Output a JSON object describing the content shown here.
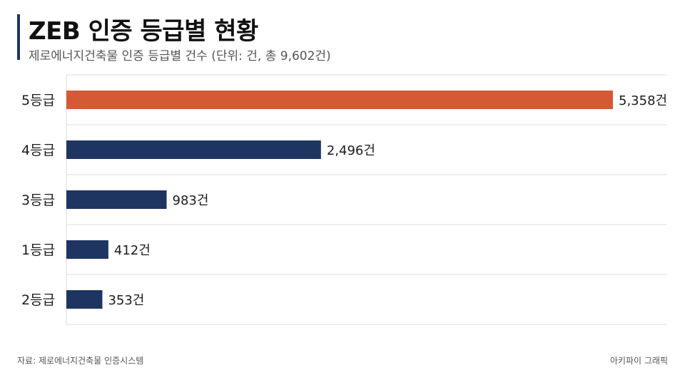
{
  "header": {
    "title": "ZEB 인증 등급별 현황",
    "subtitle": "제로에너지건축물 인증 등급별 건수 (단위: 건, 총 9,602건)"
  },
  "footer": {
    "source": "자료: 제로에너지건축물 인증시스템",
    "credit": "아키파이 그래픽"
  },
  "colors": {
    "highlight": "#d45a36",
    "primary": "#1f3561",
    "grid": "#dddddd"
  },
  "chart_data": {
    "type": "bar",
    "orientation": "horizontal",
    "categories": [
      "5등급",
      "4등급",
      "3등급",
      "1등급",
      "2등급"
    ],
    "values": [
      5358,
      2496,
      983,
      412,
      353
    ],
    "value_labels": [
      "5,358건",
      "2,496건",
      "983건",
      "412건",
      "353건"
    ],
    "highlight_index": 0,
    "unit": "건",
    "total": 9602,
    "xlim": [
      0,
      5358
    ],
    "grid": true
  }
}
